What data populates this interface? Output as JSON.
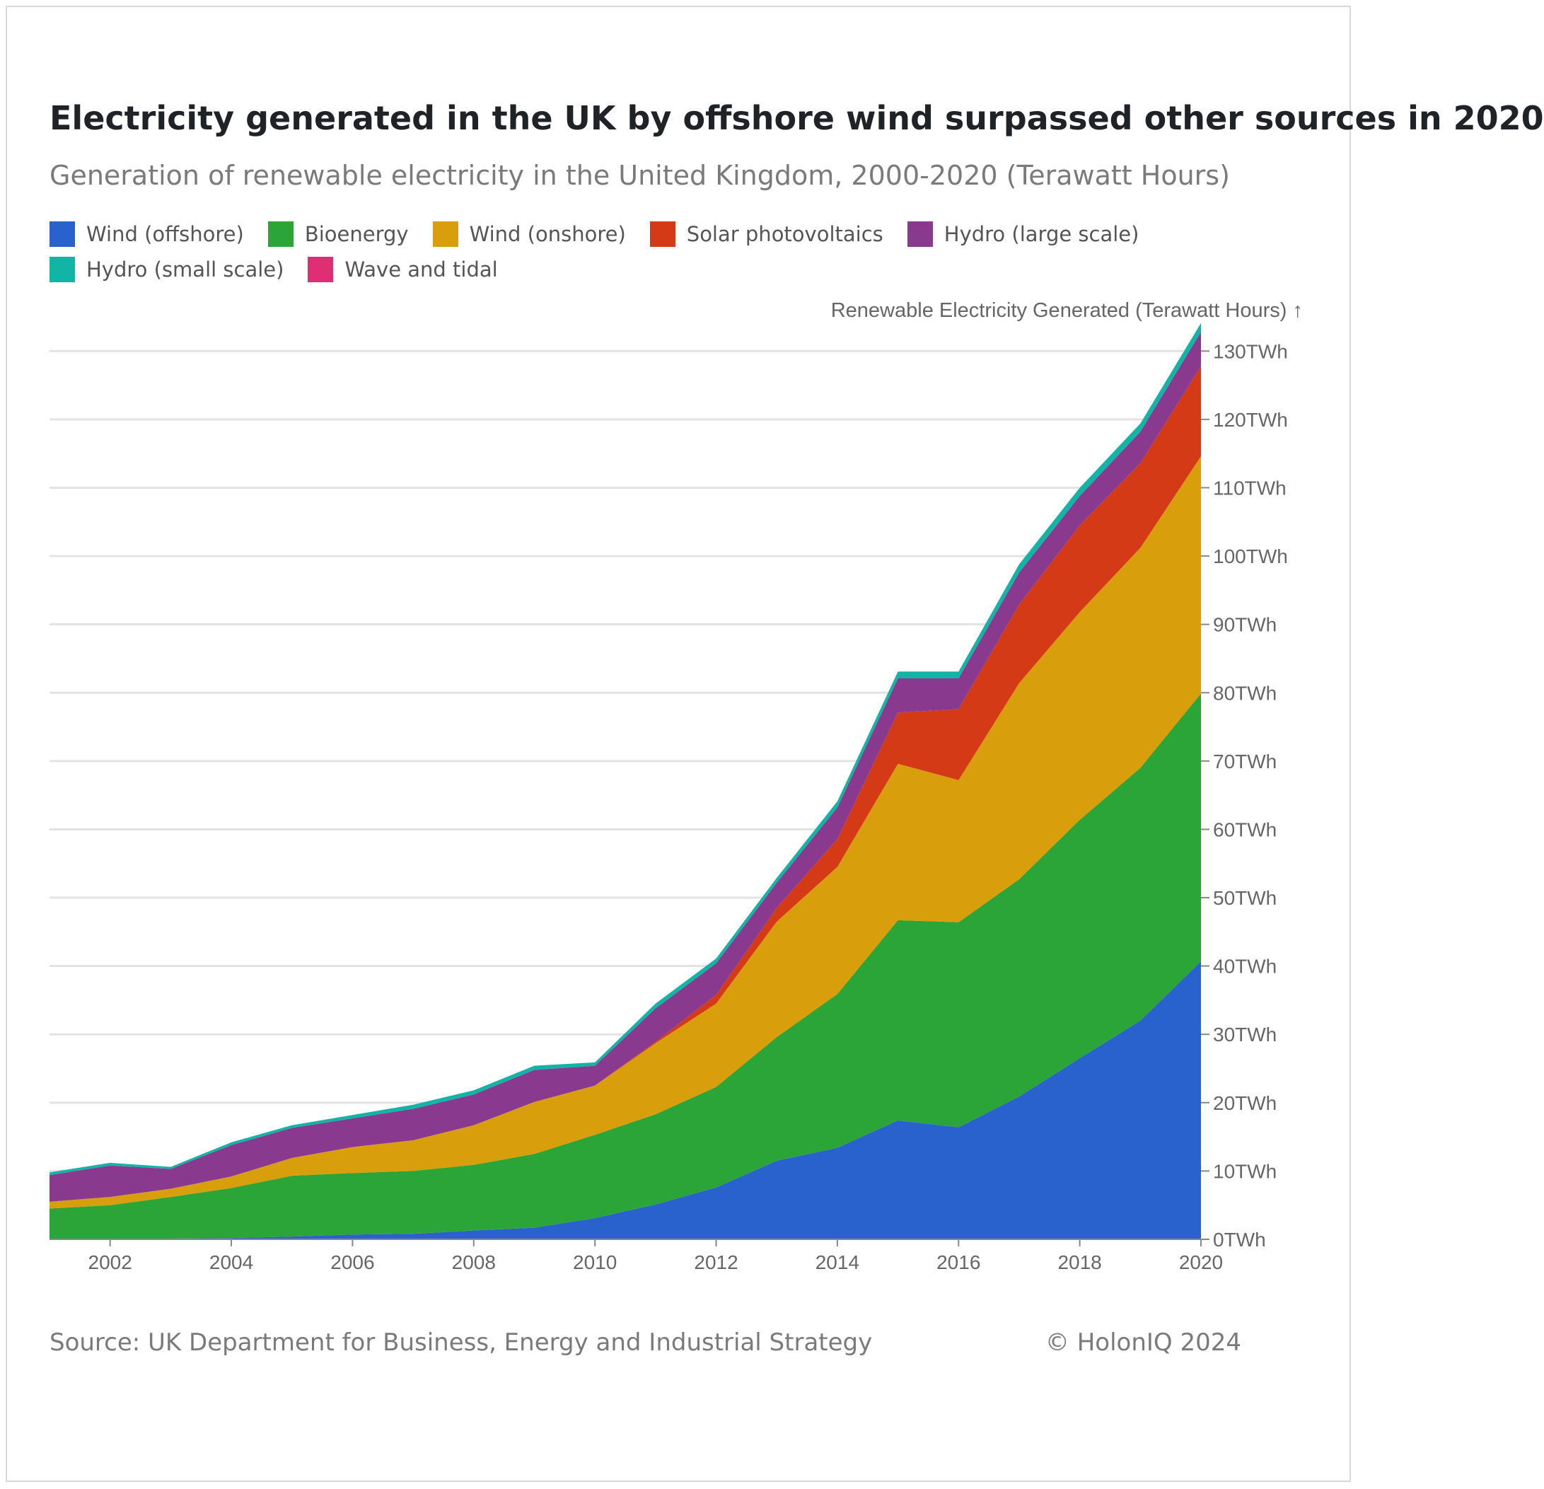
{
  "header": {
    "title": "Electricity generated in the UK by offshore wind surpassed other sources in 2020",
    "subtitle": "Generation of renewable electricity in the United Kingdom, 2000-2020 (Terawatt Hours)"
  },
  "footer": {
    "source": "Source: UK Department for Business, Energy and Industrial Strategy",
    "copyright": "© HolonIQ 2024"
  },
  "chart_data": {
    "type": "area",
    "stacked": true,
    "title": "Electricity generated in the UK by offshore wind surpassed other sources in 2020",
    "subtitle": "Generation of renewable electricity in the United Kingdom, 2000-2020 (Terawatt Hours)",
    "xlabel": "",
    "ylabel": "Renewable Electricity Generated (Terawatt Hours) ↑",
    "y_unit_suffix": "TWh",
    "ylim": [
      0,
      135
    ],
    "y_ticks": [
      0,
      10,
      20,
      30,
      40,
      50,
      60,
      70,
      80,
      90,
      100,
      110,
      120,
      130
    ],
    "x_ticks": [
      2002,
      2004,
      2006,
      2008,
      2010,
      2012,
      2014,
      2016,
      2018,
      2020
    ],
    "xlim": [
      2001,
      2020
    ],
    "y_axis_side": "right",
    "grid": "horizontal",
    "legend_placement": "top-left",
    "x": [
      2001,
      2002,
      2003,
      2004,
      2005,
      2006,
      2007,
      2008,
      2009,
      2010,
      2011,
      2012,
      2013,
      2014,
      2015,
      2016,
      2017,
      2018,
      2019,
      2020
    ],
    "series": [
      {
        "name": "Wind (offshore)",
        "color": "#2962cc",
        "values": [
          0,
          0,
          0.1,
          0.2,
          0.4,
          0.7,
          0.8,
          1.3,
          1.7,
          3.1,
          5.1,
          7.6,
          11.5,
          13.4,
          17.4,
          16.4,
          20.9,
          26.5,
          32.0,
          40.7
        ]
      },
      {
        "name": "Bioenergy",
        "color": "#2ba537",
        "values": [
          4.5,
          5.0,
          6.1,
          7.3,
          8.9,
          9.0,
          9.2,
          9.6,
          10.8,
          12.2,
          13.2,
          14.7,
          18.1,
          22.5,
          29.3,
          30.0,
          31.8,
          34.9,
          37.0,
          39.2
        ]
      },
      {
        "name": "Wind (onshore)",
        "color": "#d89e0c",
        "values": [
          1.0,
          1.2,
          1.2,
          1.7,
          2.6,
          3.8,
          4.5,
          5.8,
          7.6,
          7.2,
          10.4,
          12.2,
          16.9,
          18.6,
          22.9,
          20.8,
          28.7,
          30.4,
          32.2,
          34.7
        ]
      },
      {
        "name": "Solar photovoltaics",
        "color": "#d33a15",
        "values": [
          0,
          0,
          0,
          0,
          0,
          0,
          0,
          0,
          0,
          0,
          0.2,
          1.3,
          2.0,
          4.1,
          7.5,
          10.4,
          11.5,
          12.7,
          12.4,
          13.2
        ]
      },
      {
        "name": "Hydro (large scale)",
        "color": "#8a3a8e",
        "values": [
          3.9,
          4.6,
          2.9,
          4.6,
          4.4,
          4.2,
          4.6,
          4.5,
          4.7,
          2.9,
          4.9,
          4.6,
          3.7,
          4.6,
          5.0,
          4.5,
          4.7,
          4.3,
          4.6,
          5.0
        ]
      },
      {
        "name": "Hydro (small scale)",
        "color": "#12b4a6",
        "values": [
          0.4,
          0.4,
          0.3,
          0.4,
          0.4,
          0.5,
          0.6,
          0.6,
          0.6,
          0.5,
          0.7,
          0.7,
          0.7,
          0.9,
          1.0,
          1.0,
          1.2,
          1.2,
          1.2,
          1.3
        ]
      },
      {
        "name": "Wave and tidal",
        "color": "#de2f74",
        "values": [
          0,
          0,
          0,
          0,
          0,
          0,
          0,
          0,
          0,
          0,
          0,
          0,
          0,
          0,
          0,
          0,
          0,
          0,
          0,
          0
        ]
      }
    ]
  }
}
